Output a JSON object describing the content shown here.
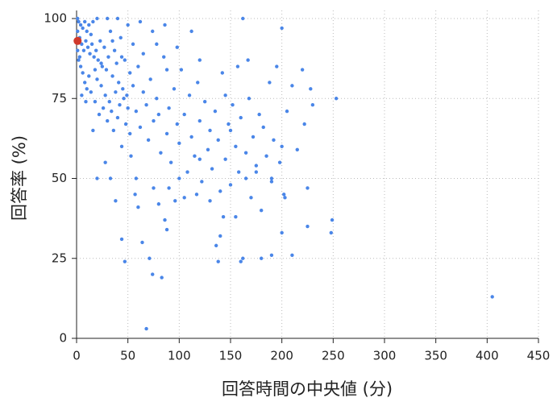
{
  "chart_data": {
    "type": "scatter",
    "x_label": "回答時間の中央値 (分)",
    "y_label": "回答率 (%)",
    "xlim": [
      0,
      450
    ],
    "xticks": [
      0,
      50,
      100,
      150,
      200,
      250,
      300,
      350,
      400,
      450
    ],
    "ylim": [
      0,
      100
    ],
    "yticks": [
      0,
      25,
      50,
      75,
      100
    ],
    "grid": true,
    "series": [
      {
        "color": "#4a86e8",
        "x": [
          2,
          4,
          6,
          8,
          10,
          12,
          14,
          16,
          3,
          5,
          7,
          9,
          11,
          13,
          15,
          17,
          19,
          21,
          23,
          25,
          27,
          29,
          31,
          33,
          35,
          37,
          39,
          41,
          43,
          45,
          47,
          49,
          2,
          4,
          6,
          8,
          10,
          12,
          14,
          18,
          20,
          22,
          24,
          26,
          28,
          30,
          32,
          34,
          36,
          38,
          40,
          42,
          44,
          46,
          48,
          50,
          52,
          55,
          58,
          60,
          62,
          65,
          68,
          70,
          72,
          75,
          78,
          80,
          82,
          85,
          88,
          90,
          92,
          95,
          98,
          100,
          102,
          105,
          108,
          110,
          112,
          115,
          118,
          120,
          122,
          125,
          128,
          130,
          132,
          135,
          138,
          140,
          142,
          145,
          148,
          150,
          152,
          155,
          158,
          160,
          162,
          165,
          168,
          170,
          172,
          175,
          178,
          180,
          182,
          185,
          188,
          190,
          192,
          195,
          198,
          200,
          200,
          202,
          205,
          210,
          215,
          220,
          222,
          225,
          228,
          230,
          248,
          249,
          253,
          405,
          44,
          47,
          57,
          60,
          68,
          71,
          74,
          83,
          86,
          88,
          96,
          105,
          117,
          136,
          138,
          140,
          143,
          155,
          160,
          162,
          180,
          190,
          200,
          210,
          225,
          203,
          190,
          175,
          165,
          33,
          38,
          28,
          20,
          16,
          64,
          75,
          53,
          9,
          5,
          58,
          90,
          80,
          100,
          120,
          130,
          150,
          167,
          157,
          145,
          120,
          112,
          98,
          86,
          74,
          62,
          50,
          40,
          30,
          20,
          1,
          1,
          1,
          3,
          18,
          24,
          35,
          55,
          65,
          78,
          88,
          44,
          52
        ],
        "values": [
          99,
          98,
          97,
          99,
          96,
          98,
          95,
          99,
          94,
          92,
          90,
          93,
          91,
          89,
          92,
          88,
          90,
          87,
          93,
          85,
          91,
          84,
          88,
          96,
          82,
          90,
          86,
          80,
          94,
          78,
          87,
          76,
          87,
          85,
          83,
          80,
          78,
          82,
          77,
          74,
          81,
          70,
          79,
          72,
          76,
          68,
          74,
          71,
          65,
          77,
          69,
          73,
          60,
          75,
          67,
          72,
          64,
          79,
          71,
          85,
          66,
          77,
          73,
          62,
          81,
          68,
          75,
          70,
          58,
          88,
          64,
          72,
          55,
          78,
          67,
          61,
          84,
          70,
          52,
          76,
          63,
          57,
          80,
          68,
          49,
          74,
          59,
          65,
          53,
          71,
          62,
          46,
          83,
          56,
          67,
          48,
          73,
          60,
          52,
          69,
          100,
          58,
          75,
          44,
          63,
          54,
          70,
          40,
          66,
          57,
          80,
          50,
          62,
          85,
          55,
          97,
          60,
          45,
          71,
          79,
          59,
          84,
          67,
          47,
          78,
          73,
          33,
          37,
          75,
          13,
          31,
          24,
          45,
          41,
          3,
          25,
          20,
          19,
          37,
          34,
          43,
          44,
          45,
          29,
          24,
          32,
          38,
          38,
          24,
          25,
          25,
          26,
          33,
          26,
          35,
          44,
          49,
          52,
          50,
          50,
          43,
          55,
          50,
          65,
          30,
          47,
          57,
          74,
          76,
          50,
          47,
          42,
          50,
          56,
          43,
          65,
          87,
          85,
          76,
          87,
          96,
          91,
          98,
          96,
          99,
          98,
          100,
          100,
          100,
          100,
          96,
          90,
          88,
          84,
          86,
          93,
          92,
          89,
          92,
          84,
          88,
          83
        ]
      },
      {
        "color": "#d0392b",
        "x": [
          1
        ],
        "values": [
          93
        ]
      }
    ]
  }
}
